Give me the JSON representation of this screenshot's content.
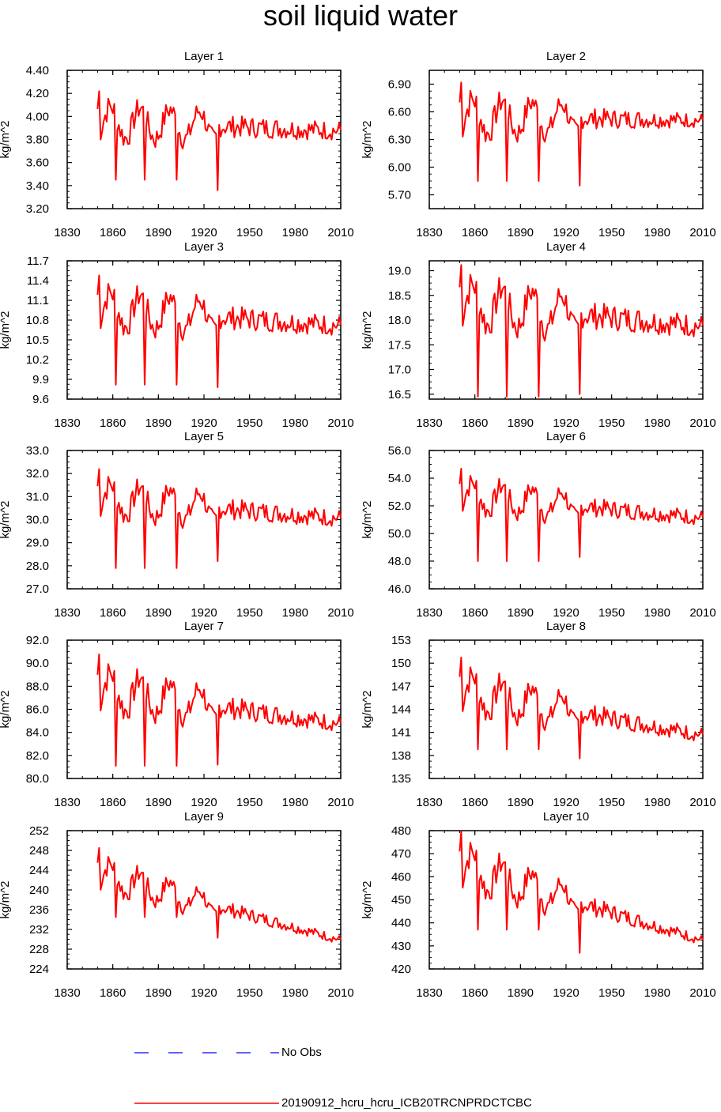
{
  "title": "soil liquid water",
  "colors": {
    "series": "#ff0000",
    "noobs": "#0000ff",
    "axis": "#000000"
  },
  "legend": [
    {
      "label": "No Obs",
      "style": "dashed",
      "color": "#0000ff"
    },
    {
      "label": "20190912_hcru_hcru_ICB20TRCNPRDCTCBC",
      "style": "solid",
      "color": "#ff0000"
    }
  ],
  "chart_data": [
    {
      "type": "line",
      "title": "Layer 1",
      "ylabel": "kg/m^2",
      "xlim": [
        1830,
        2010
      ],
      "xticks": [
        "1830",
        "1860",
        "1890",
        "1920",
        "1950",
        "1980",
        "2010"
      ],
      "ylim": [
        3.2,
        4.4
      ],
      "yticks": [
        "3.20",
        "3.40",
        "3.60",
        "3.80",
        "4.00",
        "4.20",
        "4.40"
      ],
      "dips": [
        3.45,
        3.45,
        3.45,
        3.36
      ],
      "range": [
        3.6,
        4.22
      ],
      "end": [
        3.6,
        4.08
      ],
      "series": [
        {
          "name": "20190912_hcru_hcru_ICB20TRCNPRDCTCBC",
          "x_start": 1850,
          "x_end": 2010,
          "values": []
        }
      ]
    },
    {
      "type": "line",
      "title": "Layer 2",
      "ylabel": "kg/m^2",
      "xlim": [
        1830,
        2010
      ],
      "xticks": [
        "1830",
        "1860",
        "1890",
        "1920",
        "1950",
        "1980",
        "2010"
      ],
      "ylim": [
        5.55,
        7.05
      ],
      "yticks": [
        "5.70",
        "6.00",
        "6.30",
        "6.60",
        "6.90"
      ],
      "dips": [
        5.85,
        5.85,
        5.85,
        5.8
      ],
      "range": [
        6.05,
        6.92
      ],
      "end": [
        6.25,
        6.7
      ],
      "series": [
        {
          "name": "20190912_hcru_hcru_ICB20TRCNPRDCTCBC",
          "x_start": 1850,
          "x_end": 2010,
          "values": []
        }
      ]
    },
    {
      "type": "line",
      "title": "Layer 3",
      "ylabel": "kg/m^2",
      "xlim": [
        1830,
        2010
      ],
      "xticks": [
        "1830",
        "1860",
        "1890",
        "1920",
        "1950",
        "1980",
        "2010"
      ],
      "ylim": [
        9.6,
        11.7
      ],
      "yticks": [
        "9.6",
        "9.9",
        "10.2",
        "10.5",
        "10.8",
        "11.1",
        "11.4",
        "11.7"
      ],
      "dips": [
        9.82,
        9.82,
        9.82,
        9.78
      ],
      "range": [
        10.3,
        11.48
      ],
      "end": [
        10.2,
        11.1
      ],
      "series": [
        {
          "name": "20190912_hcru_hcru_ICB20TRCNPRDCTCBC",
          "x_start": 1850,
          "x_end": 2010,
          "values": []
        }
      ]
    },
    {
      "type": "line",
      "title": "Layer 4",
      "ylabel": "kg/m^2",
      "xlim": [
        1830,
        2010
      ],
      "xticks": [
        "1830",
        "1860",
        "1890",
        "1920",
        "1950",
        "1980",
        "2010"
      ],
      "ylim": [
        16.4,
        19.2
      ],
      "yticks": [
        "16.5",
        "17.0",
        "17.5",
        "18.0",
        "18.5",
        "19.0"
      ],
      "dips": [
        16.45,
        16.45,
        16.45,
        16.5
      ],
      "range": [
        17.3,
        19.12
      ],
      "end": [
        17.1,
        18.45
      ],
      "series": [
        {
          "name": "20190912_hcru_hcru_ICB20TRCNPRDCTCBC",
          "x_start": 1850,
          "x_end": 2010,
          "values": []
        }
      ]
    },
    {
      "type": "line",
      "title": "Layer 5",
      "ylabel": "kg/m^2",
      "xlim": [
        1830,
        2010
      ],
      "xticks": [
        "1830",
        "1860",
        "1890",
        "1920",
        "1950",
        "1980",
        "2010"
      ],
      "ylim": [
        27.0,
        33.0
      ],
      "yticks": [
        "27.0",
        "28.0",
        "29.0",
        "30.0",
        "31.0",
        "32.0",
        "33.0"
      ],
      "dips": [
        27.9,
        27.9,
        27.9,
        28.2
      ],
      "range": [
        29.2,
        32.2
      ],
      "end": [
        28.8,
        31.0
      ],
      "series": [
        {
          "name": "20190912_hcru_hcru_ICB20TRCNPRDCTCBC",
          "x_start": 1850,
          "x_end": 2010,
          "values": []
        }
      ]
    },
    {
      "type": "line",
      "title": "Layer 6",
      "ylabel": "kg/m^2",
      "xlim": [
        1830,
        2010
      ],
      "xticks": [
        "1830",
        "1860",
        "1890",
        "1920",
        "1950",
        "1980",
        "2010"
      ],
      "ylim": [
        46.0,
        56.0
      ],
      "yticks": [
        "46.0",
        "48.0",
        "50.0",
        "52.0",
        "54.0",
        "56.0"
      ],
      "dips": [
        48.0,
        48.0,
        48.0,
        48.3
      ],
      "range": [
        50.2,
        54.7
      ],
      "end": [
        49.3,
        52.5
      ],
      "series": [
        {
          "name": "20190912_hcru_hcru_ICB20TRCNPRDCTCBC",
          "x_start": 1850,
          "x_end": 2010,
          "values": []
        }
      ]
    },
    {
      "type": "line",
      "title": "Layer 7",
      "ylabel": "kg/m^2",
      "xlim": [
        1830,
        2010
      ],
      "xticks": [
        "1830",
        "1860",
        "1890",
        "1920",
        "1950",
        "1980",
        "2010"
      ],
      "ylim": [
        80.0,
        92.0
      ],
      "yticks": [
        "80.0",
        "82.0",
        "84.0",
        "86.0",
        "88.0",
        "90.0",
        "92.0"
      ],
      "dips": [
        81.1,
        81.1,
        81.1,
        81.2
      ],
      "range": [
        83.6,
        90.8
      ],
      "end": [
        82.4,
        86.5
      ],
      "series": [
        {
          "name": "20190912_hcru_hcru_ICB20TRCNPRDCTCBC",
          "x_start": 1850,
          "x_end": 2010,
          "values": []
        }
      ]
    },
    {
      "type": "line",
      "title": "Layer 8",
      "ylabel": "kg/m^2",
      "xlim": [
        1830,
        2010
      ],
      "xticks": [
        "1830",
        "1860",
        "1890",
        "1920",
        "1950",
        "1980",
        "2010"
      ],
      "ylim": [
        135,
        153
      ],
      "yticks": [
        "135",
        "138",
        "141",
        "144",
        "147",
        "150",
        "153"
      ],
      "dips": [
        138.8,
        138.8,
        138.8,
        137.6
      ],
      "range": [
        140.5,
        150.8
      ],
      "end": [
        137.5,
        143.0
      ],
      "series": [
        {
          "name": "20190912_hcru_hcru_ICB20TRCNPRDCTCBC",
          "x_start": 1850,
          "x_end": 2010,
          "values": []
        }
      ]
    },
    {
      "type": "line",
      "title": "Layer 9",
      "ylabel": "kg/m^2",
      "xlim": [
        1830,
        2010
      ],
      "xticks": [
        "1830",
        "1860",
        "1890",
        "1920",
        "1950",
        "1980",
        "2010"
      ],
      "ylim": [
        224,
        252
      ],
      "yticks": [
        "224",
        "228",
        "232",
        "236",
        "240",
        "244",
        "248",
        "252"
      ],
      "dips": [
        234.5,
        234.5,
        234.5,
        230.3
      ],
      "range": [
        236.2,
        248.6
      ],
      "end": [
        227.0,
        232.0
      ],
      "series": [
        {
          "name": "20190912_hcru_hcru_ICB20TRCNPRDCTCBC",
          "x_start": 1850,
          "x_end": 2010,
          "values": []
        }
      ]
    },
    {
      "type": "line",
      "title": "Layer 10",
      "ylabel": "kg/m^2",
      "xlim": [
        1830,
        2010
      ],
      "xticks": [
        "1830",
        "1860",
        "1890",
        "1920",
        "1950",
        "1980",
        "2010"
      ],
      "ylim": [
        420,
        480
      ],
      "yticks": [
        "420",
        "430",
        "440",
        "450",
        "460",
        "470",
        "480"
      ],
      "dips": [
        437.0,
        437.0,
        437.0,
        427.0
      ],
      "range": [
        444.0,
        480.0
      ],
      "end": [
        425.5,
        437.5
      ],
      "series": [
        {
          "name": "20190912_hcru_hcru_ICB20TRCNPRDCTCBC",
          "x_start": 1850,
          "x_end": 2010,
          "values": []
        }
      ]
    }
  ]
}
